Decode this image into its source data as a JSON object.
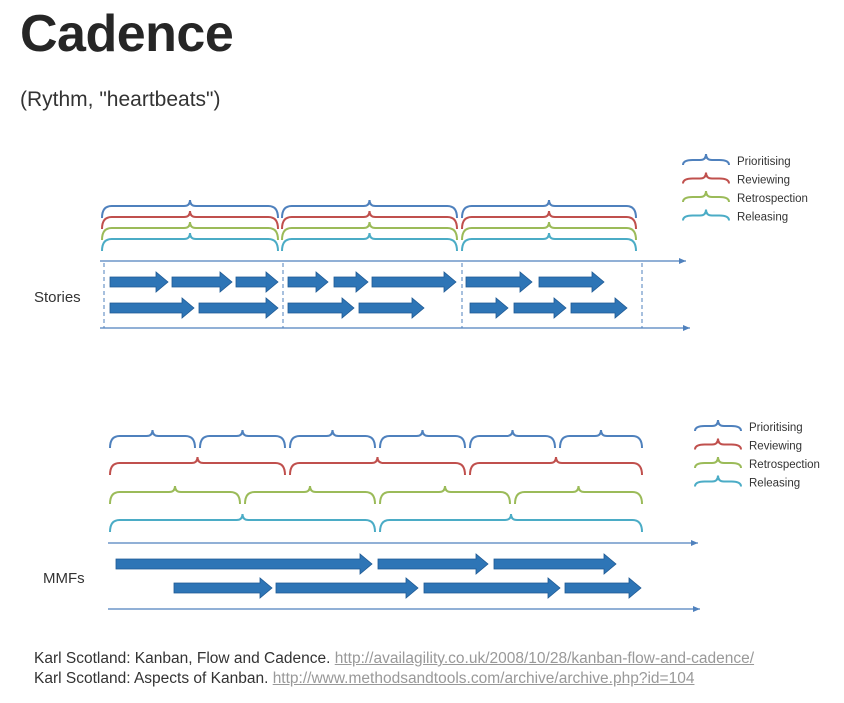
{
  "title": "Cadence",
  "subtitle": "(Rythm, \"heartbeats\")",
  "colors": {
    "prioritising": "#4f81bd",
    "reviewing": "#c0504d",
    "retrospection": "#9bbb59",
    "releasing": "#4bacc6",
    "arrow": "#2e75b6",
    "axis": "#4f81bd"
  },
  "legend": {
    "prioritising": "Prioritising",
    "reviewing": "Reviewing",
    "retrospection": "Retrospection",
    "releasing": "Releasing"
  },
  "top_diagram": {
    "row_label": "Stories"
  },
  "bottom_diagram": {
    "row_label": "MMFs"
  },
  "references": [
    {
      "text": "Karl Scotland: Kanban, Flow and Cadence. ",
      "link": "http://availagility.co.uk/2008/10/28/kanban-flow-and-cadence/"
    },
    {
      "text": "Karl Scotland: Aspects of Kanban. ",
      "link": "http://www.methodsandtools.com/archive/archive.php?id=104"
    }
  ]
}
